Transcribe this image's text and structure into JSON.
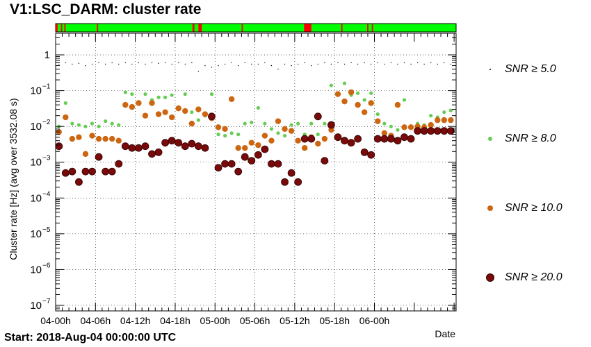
{
  "window": {
    "title": "V1:LSC_DARM: cluster rate"
  },
  "footer": {
    "start": "Start: 2018-Aug-04 00:00:00 UTC"
  },
  "colors": {
    "snr5": "#000000",
    "snr8": "#66cc55",
    "snr10": "#cc6611",
    "snr20": "#7a0a0a",
    "seg_ok": "#00ff00",
    "seg_bad": "#ff0000"
  },
  "chart_data": {
    "type": "scatter",
    "xlabel": "Date",
    "ylabel": "Cluster rate [Hz] (avg over 3532.08 s)",
    "yscale": "log",
    "ylim": [
      7e-08,
      4
    ],
    "xlim_hours": [
      0,
      60.3
    ],
    "xticks": [
      {
        "hour": 0,
        "label": "04-00h"
      },
      {
        "hour": 6,
        "label": "04-06h"
      },
      {
        "hour": 12,
        "label": "04-12h"
      },
      {
        "hour": 18,
        "label": "04-18h"
      },
      {
        "hour": 24,
        "label": "05-00h"
      },
      {
        "hour": 30,
        "label": "05-06h"
      },
      {
        "hour": 36,
        "label": "05-12h"
      },
      {
        "hour": 42,
        "label": "05-18h"
      },
      {
        "hour": 48,
        "label": "06-00h"
      }
    ],
    "yticks": [
      {
        "value": 1e-07,
        "base": "10",
        "exp": "−7"
      },
      {
        "value": 1e-06,
        "base": "10",
        "exp": "−6"
      },
      {
        "value": 1e-05,
        "base": "10",
        "exp": "−5"
      },
      {
        "value": 0.0001,
        "base": "10",
        "exp": "−4"
      },
      {
        "value": 0.001,
        "base": "10",
        "exp": "−3"
      },
      {
        "value": 0.01,
        "base": "10",
        "exp": "−2"
      },
      {
        "value": 0.1,
        "base": "10",
        "exp": "−1"
      },
      {
        "value": 1,
        "base": "1",
        "exp": ""
      }
    ],
    "grid": true,
    "legend_position": "right",
    "segments": [
      {
        "start": 0,
        "end": 0.3,
        "state": "bad"
      },
      {
        "start": 0.8,
        "end": 1.0,
        "state": "bad"
      },
      {
        "start": 1.3,
        "end": 1.5,
        "state": "bad"
      },
      {
        "start": 6.2,
        "end": 6.4,
        "state": "bad"
      },
      {
        "start": 20.6,
        "end": 20.9,
        "state": "bad"
      },
      {
        "start": 21.5,
        "end": 22.0,
        "state": "bad"
      },
      {
        "start": 28.0,
        "end": 28.2,
        "state": "bad"
      },
      {
        "start": 37.4,
        "end": 38.5,
        "state": "bad"
      },
      {
        "start": 43.0,
        "end": 43.2,
        "state": "bad"
      },
      {
        "start": 46.9,
        "end": 47.1,
        "state": "bad"
      },
      {
        "start": 47.6,
        "end": 47.8,
        "state": "bad"
      }
    ],
    "series": [
      {
        "name": "SNR ≥ 5.0",
        "key": "snr5",
        "marker": "tiny",
        "x": [
          0.5,
          1.5,
          2.5,
          3.5,
          4.5,
          5.5,
          6.5,
          7.5,
          8.5,
          9.5,
          10.5,
          11.5,
          12.5,
          13.5,
          14.5,
          15.5,
          16.5,
          17.5,
          18.5,
          19.5,
          20.5,
          21.5,
          22.5,
          23.5,
          24.5,
          25.5,
          26.5,
          27.5,
          28.5,
          29.5,
          30.5,
          31.5,
          32.5,
          33.5,
          34.5,
          35.5,
          36.5,
          37.5,
          38.5,
          39.5,
          40.5,
          41.5,
          42.5,
          43.5,
          44.5,
          45.5,
          46.5,
          47.5,
          48.5,
          49.5,
          50.5,
          51.5,
          52.5,
          53.5,
          54.5,
          55.5,
          56.5,
          57.5,
          58.5,
          59.5
        ],
        "values": [
          0.55,
          0.6,
          0.55,
          0.58,
          0.5,
          0.55,
          0.6,
          0.55,
          0.6,
          0.55,
          0.6,
          0.55,
          0.6,
          0.55,
          0.6,
          0.58,
          0.6,
          0.55,
          0.6,
          0.55,
          0.6,
          0.35,
          0.5,
          0.45,
          0.5,
          0.55,
          0.6,
          0.5,
          0.6,
          0.55,
          0.55,
          0.6,
          0.5,
          0.4,
          0.55,
          0.5,
          0.55,
          0.6,
          0.5,
          0.55,
          0.6,
          0.55,
          0.6,
          0.55,
          0.6,
          0.55,
          0.6,
          0.55,
          0.6,
          0.55,
          0.6,
          0.55,
          0.6,
          0.55,
          0.6,
          0.55,
          0.6,
          0.55,
          0.6,
          0.55
        ]
      },
      {
        "name": "SNR ≥ 8.0",
        "key": "snr8",
        "marker": "small",
        "x": [
          0.5,
          1.5,
          2.5,
          3.5,
          4.5,
          5.5,
          6.5,
          7.5,
          8.5,
          9.5,
          10.5,
          11.5,
          12.5,
          13.5,
          14.5,
          15.5,
          16.5,
          17.5,
          18.5,
          19.5,
          20.5,
          21.5,
          22.5,
          23.5,
          24.5,
          25.5,
          26.5,
          27.5,
          28.5,
          29.5,
          30.5,
          31.5,
          32.5,
          33.5,
          34.5,
          35.5,
          36.5,
          37.5,
          38.5,
          39.5,
          40.5,
          41.5,
          42.5,
          43.5,
          44.5,
          45.5,
          46.5,
          47.5,
          48.5,
          49.5,
          50.5,
          51.5,
          52.5,
          53.5,
          54.5,
          55.5,
          56.5,
          57.5,
          58.5,
          59.5
        ],
        "values": [
          0.01,
          0.045,
          0.012,
          0.011,
          0.01,
          0.012,
          0.01,
          0.014,
          0.012,
          0.011,
          0.09,
          0.08,
          0.045,
          0.08,
          0.055,
          0.065,
          0.065,
          0.075,
          0.03,
          0.08,
          0.025,
          0.015,
          0.02,
          0.08,
          0.006,
          0.0055,
          0.0065,
          0.006,
          0.012,
          0.013,
          0.033,
          0.012,
          0.0085,
          0.0065,
          0.0055,
          0.011,
          0.012,
          0.006,
          0.012,
          0.006,
          0.012,
          0.14,
          0.08,
          0.16,
          0.075,
          0.085,
          0.055,
          0.085,
          0.022,
          0.012,
          0.01,
          0.008,
          0.055,
          0.01,
          0.012,
          0.011,
          0.02,
          0.018,
          0.025,
          0.028
        ]
      },
      {
        "name": "SNR ≥ 10.0",
        "key": "snr10",
        "marker": "medium",
        "x": [
          0.5,
          1.5,
          2.5,
          3.5,
          4.5,
          5.5,
          6.5,
          7.5,
          8.5,
          9.5,
          10.5,
          11.5,
          12.5,
          13.5,
          14.5,
          15.5,
          16.5,
          17.5,
          18.5,
          19.5,
          20.5,
          21.5,
          22.5,
          23.5,
          24.5,
          25.5,
          26.5,
          27.5,
          28.5,
          29.5,
          30.5,
          31.5,
          32.5,
          33.5,
          34.5,
          35.5,
          36.5,
          37.5,
          38.5,
          39.5,
          40.5,
          41.5,
          42.5,
          43.5,
          44.5,
          45.5,
          46.5,
          47.5,
          48.5,
          49.5,
          50.5,
          51.5,
          52.5,
          53.5,
          54.5,
          55.5,
          56.5,
          57.5,
          58.5,
          59.5
        ],
        "values": [
          0.007,
          0.018,
          0.0045,
          0.005,
          0.0017,
          0.0055,
          0.0045,
          0.0045,
          0.0045,
          0.004,
          0.04,
          0.035,
          0.045,
          0.02,
          0.045,
          0.022,
          0.025,
          0.018,
          0.032,
          0.027,
          0.012,
          0.03,
          0.022,
          0.017,
          0.0095,
          0.0085,
          0.058,
          0.0025,
          0.0025,
          0.0035,
          0.003,
          0.0055,
          0.004,
          0.014,
          0.0085,
          0.0075,
          0.004,
          0.0025,
          0.005,
          0.0033,
          0.0045,
          0.008,
          0.08,
          0.05,
          0.09,
          0.04,
          0.025,
          0.045,
          0.014,
          0.0065,
          0.0055,
          0.04,
          0.0095,
          0.0095,
          0.01,
          0.0095,
          0.011,
          0.015,
          0.015,
          0.015
        ]
      },
      {
        "name": "SNR ≥ 20.0",
        "key": "snr20",
        "marker": "large",
        "x": [
          0.5,
          1.5,
          2.5,
          3.5,
          4.5,
          5.5,
          6.5,
          7.5,
          8.5,
          9.5,
          10.5,
          11.5,
          12.5,
          13.5,
          14.5,
          15.5,
          16.5,
          17.5,
          18.5,
          19.5,
          20.5,
          21.5,
          22.5,
          23.5,
          24.5,
          25.5,
          26.5,
          27.5,
          28.5,
          29.5,
          30.5,
          31.5,
          32.5,
          33.5,
          34.5,
          35.5,
          36.5,
          37.5,
          38.5,
          39.5,
          40.5,
          41.5,
          42.5,
          43.5,
          44.5,
          45.5,
          46.5,
          47.5,
          48.5,
          49.5,
          50.5,
          51.5,
          52.5,
          53.5,
          54.5,
          55.5,
          56.5,
          57.5,
          58.5,
          59.5
        ],
        "values": [
          0.0028,
          0.0005,
          0.00055,
          0.00028,
          0.00055,
          0.00055,
          0.0014,
          0.00055,
          0.00055,
          0.0009,
          0.0028,
          0.0025,
          0.0025,
          0.0028,
          0.0017,
          0.0019,
          0.0035,
          0.004,
          0.0035,
          0.0028,
          0.0033,
          0.0028,
          0.0025,
          0.019,
          0.0007,
          0.0009,
          0.0009,
          0.00055,
          0.0014,
          0.0011,
          0.0016,
          0.0023,
          0.0009,
          0.0009,
          0.00028,
          0.0005,
          0.00028,
          0.0045,
          0.0045,
          0.019,
          0.0011,
          0.011,
          0.005,
          0.004,
          0.0035,
          0.0045,
          0.0019,
          0.0016,
          0.0045,
          0.0045,
          0.0045,
          0.004,
          0.005,
          0.0045,
          0.0075,
          0.0075,
          0.0075,
          0.0075,
          0.0075,
          0.0075
        ]
      }
    ]
  }
}
